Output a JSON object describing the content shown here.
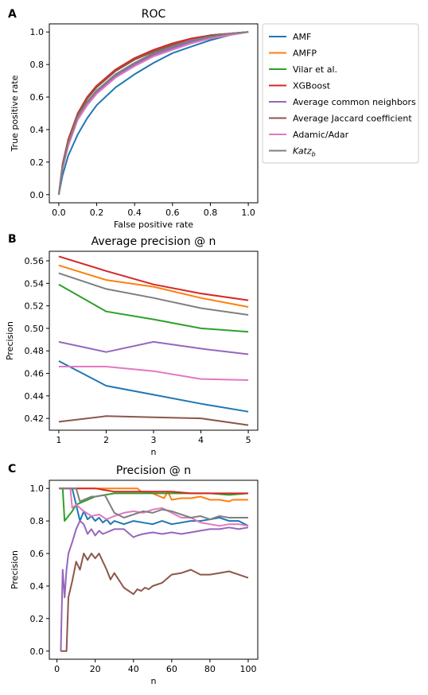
{
  "chart_data": [
    {
      "panel": "A",
      "type": "line",
      "title": "ROC",
      "xlabel": "False positive rate",
      "ylabel": "True positive rate",
      "xlim": [
        -0.05,
        1.05
      ],
      "ylim": [
        -0.05,
        1.05
      ],
      "xticks": [
        "0.0",
        "0.2",
        "0.4",
        "0.6",
        "0.8",
        "1.0"
      ],
      "yticks": [
        "0.0",
        "0.2",
        "0.4",
        "0.6",
        "0.8",
        "1.0"
      ],
      "legend": {
        "placement": "right-outside"
      },
      "x": [
        0,
        0.02,
        0.05,
        0.1,
        0.15,
        0.2,
        0.3,
        0.4,
        0.5,
        0.6,
        0.7,
        0.8,
        0.9,
        1.0
      ],
      "series": [
        {
          "name": "AMF",
          "color": "#1f77b4",
          "values": [
            0,
            0.12,
            0.24,
            0.37,
            0.47,
            0.55,
            0.66,
            0.74,
            0.81,
            0.87,
            0.91,
            0.95,
            0.98,
            1.0
          ]
        },
        {
          "name": "AMFP",
          "color": "#ff7f0e",
          "values": [
            0,
            0.18,
            0.33,
            0.49,
            0.59,
            0.66,
            0.76,
            0.83,
            0.88,
            0.92,
            0.95,
            0.97,
            0.99,
            1.0
          ]
        },
        {
          "name": "Vilar et al.",
          "color": "#2ca02c",
          "values": [
            0,
            0.17,
            0.31,
            0.47,
            0.57,
            0.64,
            0.74,
            0.81,
            0.87,
            0.91,
            0.94,
            0.97,
            0.99,
            1.0
          ]
        },
        {
          "name": "XGBoost",
          "color": "#d62728",
          "values": [
            0,
            0.19,
            0.34,
            0.5,
            0.6,
            0.67,
            0.77,
            0.84,
            0.89,
            0.93,
            0.96,
            0.98,
            0.99,
            1.0
          ]
        },
        {
          "name": "Average common neighbors",
          "color": "#9467bd",
          "values": [
            0,
            0.17,
            0.31,
            0.47,
            0.56,
            0.63,
            0.73,
            0.8,
            0.86,
            0.9,
            0.94,
            0.97,
            0.99,
            1.0
          ]
        },
        {
          "name": "Average Jaccard coefficient",
          "color": "#8c564b",
          "values": [
            0,
            0.18,
            0.33,
            0.49,
            0.59,
            0.66,
            0.76,
            0.83,
            0.88,
            0.92,
            0.95,
            0.98,
            0.99,
            1.0
          ]
        },
        {
          "name": "Adamic/Adar",
          "color": "#e377c2",
          "values": [
            0,
            0.16,
            0.3,
            0.46,
            0.55,
            0.62,
            0.72,
            0.79,
            0.85,
            0.89,
            0.93,
            0.96,
            0.98,
            1.0
          ]
        },
        {
          "name": "Katz_b",
          "color": "#7f7f7f",
          "values": [
            0,
            0.17,
            0.32,
            0.48,
            0.57,
            0.64,
            0.74,
            0.81,
            0.87,
            0.91,
            0.95,
            0.97,
            0.99,
            1.0
          ]
        }
      ]
    },
    {
      "panel": "B",
      "type": "line",
      "title": "Average precision @ n",
      "xlabel": "n",
      "ylabel": "Precision",
      "xlim": [
        0.8,
        5.2
      ],
      "ylim": [
        0.4095,
        0.5685
      ],
      "xticks": [
        "1",
        "2",
        "3",
        "4",
        "5"
      ],
      "yticks": [
        "0.42",
        "0.44",
        "0.46",
        "0.48",
        "0.50",
        "0.52",
        "0.54",
        "0.56"
      ],
      "x": [
        1,
        2,
        3,
        4,
        5
      ],
      "series": [
        {
          "color": "#1f77b4",
          "values": [
            0.471,
            0.449,
            0.441,
            0.433,
            0.426
          ]
        },
        {
          "color": "#ff7f0e",
          "values": [
            0.556,
            0.543,
            0.537,
            0.527,
            0.519
          ]
        },
        {
          "color": "#2ca02c",
          "values": [
            0.539,
            0.515,
            0.508,
            0.5,
            0.497
          ]
        },
        {
          "color": "#d62728",
          "values": [
            0.564,
            0.551,
            0.539,
            0.531,
            0.525
          ]
        },
        {
          "color": "#9467bd",
          "values": [
            0.488,
            0.479,
            0.488,
            0.482,
            0.477
          ]
        },
        {
          "color": "#8c564b",
          "values": [
            0.417,
            0.422,
            0.421,
            0.42,
            0.414
          ]
        },
        {
          "color": "#e377c2",
          "values": [
            0.466,
            0.466,
            0.462,
            0.455,
            0.454
          ]
        },
        {
          "color": "#7f7f7f",
          "values": [
            0.549,
            0.535,
            0.527,
            0.518,
            0.512
          ]
        }
      ]
    },
    {
      "panel": "C",
      "type": "line",
      "title": "Precision @ n",
      "xlabel": "n",
      "ylabel": "Precision",
      "xlim": [
        -4,
        105
      ],
      "ylim": [
        -0.05,
        1.05
      ],
      "xticks": [
        "0",
        "20",
        "40",
        "60",
        "80",
        "100"
      ],
      "yticks": [
        "0.0",
        "0.2",
        "0.4",
        "0.6",
        "0.8",
        "1.0"
      ],
      "series": [
        {
          "color": "#1f77b4",
          "x": [
            1,
            5,
            8,
            10,
            12,
            14,
            16,
            18,
            20,
            22,
            24,
            26,
            28,
            30,
            35,
            40,
            45,
            50,
            55,
            60,
            65,
            70,
            75,
            80,
            85,
            90,
            95,
            100
          ],
          "y": [
            1.0,
            1.0,
            1.0,
            0.9,
            0.8,
            0.86,
            0.81,
            0.83,
            0.8,
            0.82,
            0.79,
            0.81,
            0.78,
            0.8,
            0.78,
            0.8,
            0.79,
            0.78,
            0.8,
            0.78,
            0.79,
            0.8,
            0.8,
            0.81,
            0.82,
            0.8,
            0.8,
            0.77
          ]
        },
        {
          "color": "#ff7f0e",
          "x": [
            1,
            10,
            20,
            30,
            42,
            44,
            46,
            50,
            56,
            58,
            60,
            65,
            70,
            75,
            80,
            85,
            90,
            92,
            100
          ],
          "y": [
            1.0,
            1.0,
            1.0,
            1.0,
            1.0,
            0.98,
            0.98,
            0.97,
            0.94,
            0.98,
            0.93,
            0.94,
            0.94,
            0.95,
            0.93,
            0.93,
            0.92,
            0.93,
            0.93
          ]
        },
        {
          "color": "#2ca02c",
          "x": [
            1,
            3,
            4,
            6,
            8,
            10,
            14,
            20,
            30,
            40,
            50,
            60,
            70,
            80,
            90,
            100
          ],
          "y": [
            1.0,
            1.0,
            0.8,
            0.83,
            0.86,
            0.9,
            0.92,
            0.95,
            0.97,
            0.97,
            0.97,
            0.97,
            0.97,
            0.97,
            0.96,
            0.97
          ]
        },
        {
          "color": "#d62728",
          "x": [
            1,
            20,
            30,
            40,
            50,
            60,
            70,
            80,
            90,
            100
          ],
          "y": [
            1.0,
            1.0,
            0.98,
            0.98,
            0.98,
            0.98,
            0.97,
            0.97,
            0.97,
            0.97
          ]
        },
        {
          "color": "#9467bd",
          "x": [
            2,
            3,
            4,
            5,
            6,
            8,
            10,
            12,
            14,
            16,
            18,
            20,
            22,
            24,
            26,
            28,
            30,
            35,
            40,
            42,
            45,
            50,
            55,
            60,
            65,
            70,
            75,
            80,
            85,
            90,
            95,
            100
          ],
          "y": [
            0.0,
            0.5,
            0.33,
            0.5,
            0.6,
            0.67,
            0.75,
            0.8,
            0.78,
            0.72,
            0.75,
            0.71,
            0.74,
            0.72,
            0.73,
            0.74,
            0.75,
            0.75,
            0.7,
            0.71,
            0.72,
            0.73,
            0.72,
            0.73,
            0.72,
            0.73,
            0.74,
            0.75,
            0.75,
            0.76,
            0.75,
            0.76
          ]
        },
        {
          "color": "#8c564b",
          "x": [
            2,
            5,
            6,
            8,
            10,
            12,
            14,
            16,
            18,
            20,
            22,
            24,
            26,
            28,
            30,
            35,
            40,
            42,
            44,
            46,
            48,
            50,
            55,
            60,
            65,
            70,
            75,
            80,
            85,
            90,
            95,
            100
          ],
          "y": [
            0.0,
            0.0,
            0.33,
            0.43,
            0.55,
            0.5,
            0.6,
            0.56,
            0.6,
            0.57,
            0.6,
            0.55,
            0.5,
            0.44,
            0.48,
            0.39,
            0.35,
            0.38,
            0.37,
            0.39,
            0.38,
            0.4,
            0.42,
            0.47,
            0.48,
            0.5,
            0.47,
            0.47,
            0.48,
            0.49,
            0.47,
            0.45
          ]
        },
        {
          "color": "#e377c2",
          "x": [
            1,
            7,
            8,
            10,
            14,
            18,
            22,
            26,
            30,
            35,
            40,
            45,
            50,
            55,
            60,
            65,
            70,
            75,
            80,
            85,
            90,
            95,
            100
          ],
          "y": [
            1.0,
            1.0,
            0.88,
            0.9,
            0.86,
            0.83,
            0.84,
            0.81,
            0.83,
            0.85,
            0.86,
            0.85,
            0.87,
            0.88,
            0.85,
            0.82,
            0.82,
            0.79,
            0.78,
            0.77,
            0.78,
            0.78,
            0.77
          ]
        },
        {
          "color": "#7f7f7f",
          "x": [
            1,
            10,
            12,
            14,
            16,
            18,
            20,
            25,
            30,
            35,
            40,
            45,
            50,
            55,
            60,
            65,
            70,
            75,
            80,
            85,
            90,
            95,
            100
          ],
          "y": [
            1.0,
            1.0,
            0.92,
            0.93,
            0.94,
            0.95,
            0.95,
            0.96,
            0.85,
            0.82,
            0.84,
            0.86,
            0.85,
            0.87,
            0.86,
            0.84,
            0.82,
            0.83,
            0.81,
            0.83,
            0.82,
            0.82,
            0.82
          ]
        }
      ]
    }
  ]
}
